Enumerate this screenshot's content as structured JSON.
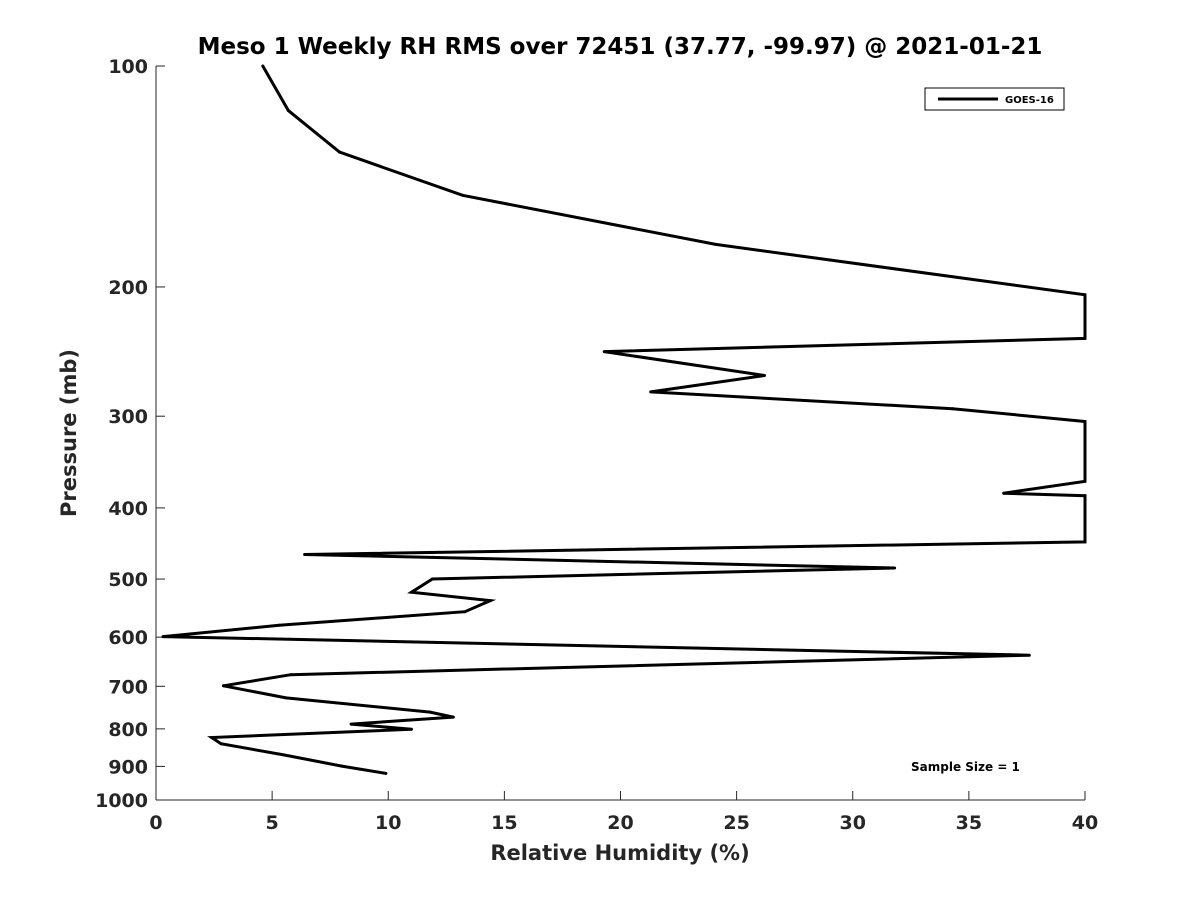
{
  "chart_data": {
    "type": "line",
    "title": "Meso 1 Weekly RH RMS over 72451 (37.77, -99.97) @ 2021-01-21",
    "xlabel": "Relative Humidity (%)",
    "ylabel": "Pressure (mb)",
    "xlim": [
      0,
      40
    ],
    "ylim": [
      1000,
      100
    ],
    "y_scale": "log",
    "y_reversed": true,
    "grid": false,
    "legend_position": "top-right",
    "x_ticks": [
      "0",
      "5",
      "10",
      "15",
      "20",
      "25",
      "30",
      "35",
      "40"
    ],
    "y_ticks": [
      "100",
      "200",
      "300",
      "400",
      "500",
      "600",
      "700",
      "800",
      "900",
      "1000"
    ],
    "annotation": "Sample Size = 1",
    "colors": {
      "series": "#000000",
      "axes": "#262626"
    },
    "series": [
      {
        "name": "GOES-16",
        "x": [
          4.6,
          5.7,
          7.9,
          13.2,
          24.1,
          40,
          40,
          19.3,
          26.2,
          21.3,
          34.3,
          40,
          40,
          36.5,
          40,
          40,
          6.4,
          31.8,
          11.9,
          11.0,
          14.4,
          13.3,
          5.3,
          0.3,
          37.6,
          5.8,
          2.9,
          5.6,
          11.8,
          12.8,
          8.4,
          11.0,
          2.4,
          2.8,
          5.5,
          8.0,
          9.9
        ],
        "y": [
          100,
          115,
          131,
          150,
          175,
          205,
          235,
          245,
          264,
          278,
          293,
          305,
          368,
          382,
          385,
          445,
          463,
          483,
          500,
          521,
          535,
          554,
          578,
          599,
          635,
          675,
          699,
          726,
          759,
          771,
          788,
          801,
          822,
          838,
          868,
          899,
          920
        ]
      }
    ]
  }
}
